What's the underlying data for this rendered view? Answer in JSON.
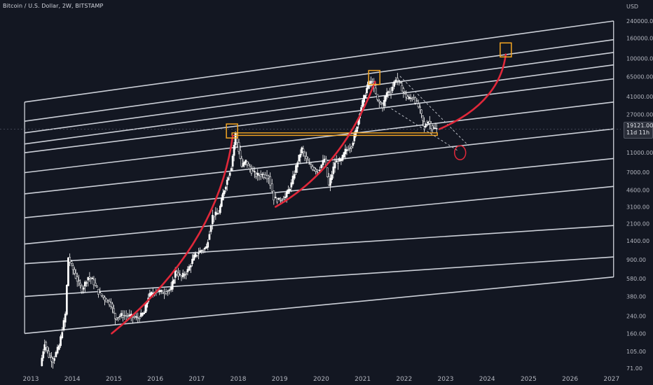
{
  "header": {
    "symbol_line": "Bitcoin / U.S. Dollar, 2W, BITSTAMP"
  },
  "price_tag": {
    "price": "19121.00",
    "countdown": "11d 11h"
  },
  "chart_data": {
    "type": "candlestick",
    "y_axis": {
      "scale": "log",
      "unit_label": "USD",
      "ticks": [
        "240000.00",
        "160000.00",
        "100000.00",
        "65000.00",
        "41000.00",
        "27000.00",
        "19121.00",
        "11000.00",
        "7000.00",
        "4600.00",
        "3100.00",
        "2100.00",
        "1400.00",
        "900.00",
        "580.00",
        "380.00",
        "240.00",
        "160.00",
        "105.00",
        "71.00"
      ]
    },
    "x_axis": {
      "ticks": [
        "2013",
        "2014",
        "2015",
        "2016",
        "2017",
        "2018",
        "2019",
        "2020",
        "2021",
        "2022",
        "2023",
        "2024",
        "2025",
        "2026",
        "2027"
      ]
    },
    "price_path": [
      [
        "2013.25",
        75
      ],
      [
        "2013.35",
        130
      ],
      [
        "2013.45",
        95
      ],
      [
        "2013.55",
        85
      ],
      [
        "2013.7",
        120
      ],
      [
        "2013.85",
        250
      ],
      [
        "2013.92",
        950
      ],
      [
        "2014.0",
        780
      ],
      [
        "2014.1",
        600
      ],
      [
        "2014.25",
        450
      ],
      [
        "2014.4",
        600
      ],
      [
        "2014.5",
        560
      ],
      [
        "2014.65",
        420
      ],
      [
        "2014.8",
        360
      ],
      [
        "2014.95",
        320
      ],
      [
        "2015.05",
        230
      ],
      [
        "2015.2",
        245
      ],
      [
        "2015.4",
        240
      ],
      [
        "2015.6",
        230
      ],
      [
        "2015.75",
        260
      ],
      [
        "2015.85",
        380
      ],
      [
        "2016.0",
        430
      ],
      [
        "2016.2",
        420
      ],
      [
        "2016.4",
        450
      ],
      [
        "2016.5",
        680
      ],
      [
        "2016.65",
        600
      ],
      [
        "2016.8",
        700
      ],
      [
        "2016.95",
        960
      ],
      [
        "2017.1",
        1100
      ],
      [
        "2017.25",
        1200
      ],
      [
        "2017.4",
        2500
      ],
      [
        "2017.55",
        2700
      ],
      [
        "2017.65",
        4200
      ],
      [
        "2017.75",
        5800
      ],
      [
        "2017.85",
        8000
      ],
      [
        "2017.95",
        17000
      ],
      [
        "2018.0",
        14000
      ],
      [
        "2018.1",
        8000
      ],
      [
        "2018.2",
        9000
      ],
      [
        "2018.3",
        7500
      ],
      [
        "2018.45",
        6500
      ],
      [
        "2018.6",
        6600
      ],
      [
        "2018.75",
        6300
      ],
      [
        "2018.88",
        3800
      ],
      [
        "2019.0",
        3600
      ],
      [
        "2019.15",
        3900
      ],
      [
        "2019.3",
        5300
      ],
      [
        "2019.45",
        9000
      ],
      [
        "2019.55",
        12000
      ],
      [
        "2019.7",
        8500
      ],
      [
        "2019.85",
        7500
      ],
      [
        "2019.95",
        7200
      ],
      [
        "2020.1",
        9500
      ],
      [
        "2020.2",
        5100
      ],
      [
        "2020.35",
        8800
      ],
      [
        "2020.5",
        9200
      ],
      [
        "2020.6",
        11500
      ],
      [
        "2020.75",
        13000
      ],
      [
        "2020.85",
        18000
      ],
      [
        "2020.95",
        29000
      ],
      [
        "2021.05",
        40000
      ],
      [
        "2021.15",
        55000
      ],
      [
        "2021.25",
        58000
      ],
      [
        "2021.38",
        37000
      ],
      [
        "2021.5",
        33000
      ],
      [
        "2021.6",
        45000
      ],
      [
        "2021.7",
        47000
      ],
      [
        "2021.82",
        63000
      ],
      [
        "2021.9",
        57000
      ],
      [
        "2022.0",
        46000
      ],
      [
        "2022.1",
        39000
      ],
      [
        "2022.25",
        40000
      ],
      [
        "2022.4",
        30000
      ],
      [
        "2022.5",
        20000
      ],
      [
        "2022.6",
        23000
      ],
      [
        "2022.7",
        19500
      ],
      [
        "2022.8",
        19121
      ]
    ],
    "channel_lines": [
      {
        "x1": "2012.85",
        "p1": 36000,
        "x2": "2027.05",
        "p2": 240000
      },
      {
        "x1": "2012.85",
        "p1": 23000,
        "x2": "2027.05",
        "p2": 155000
      },
      {
        "x1": "2012.85",
        "p1": 17500,
        "x2": "2027.05",
        "p2": 115000
      },
      {
        "x1": "2012.85",
        "p1": 13500,
        "x2": "2027.05",
        "p2": 86000
      },
      {
        "x1": "2012.85",
        "p1": 11000,
        "x2": "2027.05",
        "p2": 62000
      },
      {
        "x1": "2012.85",
        "p1": 6900,
        "x2": "2027.05",
        "p2": 36000
      },
      {
        "x1": "2012.85",
        "p1": 4200,
        "x2": "2027.05",
        "p2": 19200
      },
      {
        "x1": "2012.85",
        "p1": 2400,
        "x2": "2027.05",
        "p2": 9600
      },
      {
        "x1": "2012.85",
        "p1": 1300,
        "x2": "2027.05",
        "p2": 5000
      },
      {
        "x1": "2012.85",
        "p1": 820,
        "x2": "2027.05",
        "p2": 2000
      },
      {
        "x1": "2012.85",
        "p1": 380,
        "x2": "2027.05",
        "p2": 960
      },
      {
        "x1": "2012.85",
        "p1": 160,
        "x2": "2027.05",
        "p2": 600
      }
    ],
    "red_curves": [
      {
        "x1": "2014.95",
        "p1": 160,
        "cx": "2017.5",
        "cp": 1200,
        "x2": "2017.87",
        "p2": 16500
      },
      {
        "x1": "2018.9",
        "p1": 3100,
        "cx": "2020.5",
        "cp": 7500,
        "x2": "2021.3",
        "p2": 58000
      },
      {
        "x1": "2022.85",
        "p1": 19121,
        "cx": "2024.3",
        "cp": 35000,
        "x2": "2024.45",
        "p2": 110000
      }
    ],
    "orange_boxes": [
      {
        "x": "2017.85",
        "p": 18000
      },
      {
        "x": "2021.28",
        "p": 63000
      },
      {
        "x": "2024.45",
        "p": 120000
      }
    ],
    "support_band": {
      "x1": "2017.85",
      "x2": "2022.8",
      "p_top": 17500,
      "p_bottom": 16500
    },
    "projection_lines": [
      {
        "x1": "2021.9",
        "p1": 66000,
        "x2": "2023.55",
        "p2": 13000
      },
      {
        "x1": "2021.35",
        "p1": 38000,
        "x2": "2023.3",
        "p2": 11500
      }
    ],
    "target_circle": {
      "x": "2023.35",
      "p": 11000
    },
    "colors": {
      "background": "#131722",
      "channel": "#e0e3eb",
      "candles": "#ffffff",
      "curve": "#e0283a",
      "box": "#f5a623",
      "axis_text": "#b2b5be"
    }
  }
}
